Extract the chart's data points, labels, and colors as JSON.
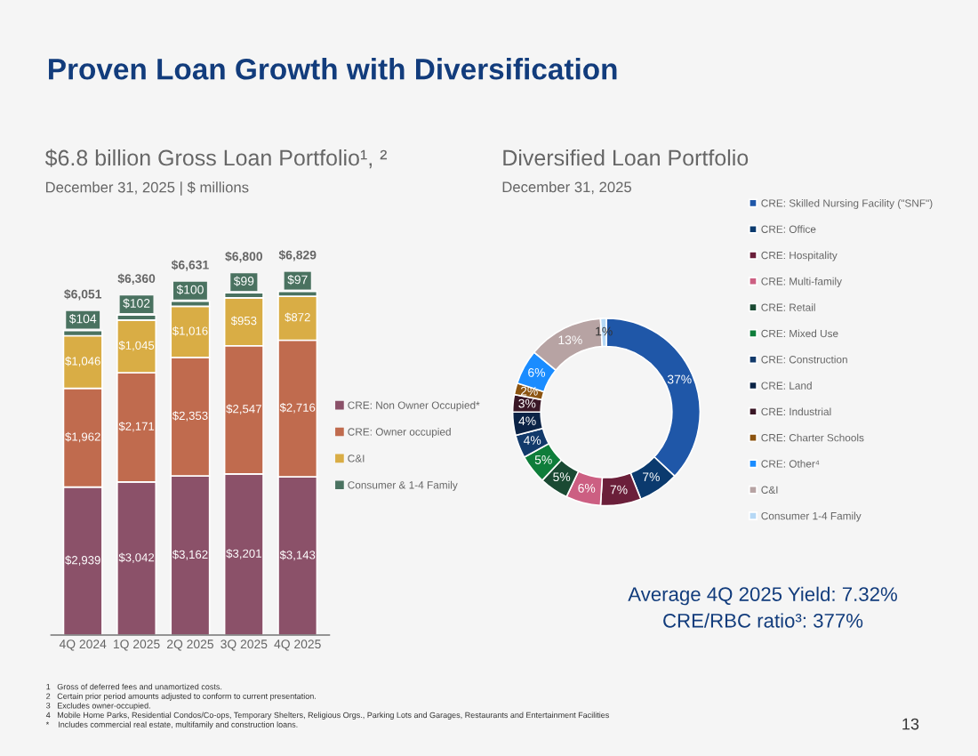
{
  "chart_data": [
    {
      "type": "bar",
      "title": "$6.8 billion Gross Loan Portfolio¹, ²",
      "subtitle": "December 31, 2025 | $ millions",
      "categories": [
        "4Q 2024",
        "1Q 2025",
        "2Q 2025",
        "3Q 2025",
        "4Q 2025"
      ],
      "stacked": true,
      "legend": "right",
      "series": [
        {
          "name": "CRE: Non Owner Occupied*",
          "color": "#8b5169",
          "values": [
            2939,
            3042,
            3162,
            3201,
            3143
          ],
          "value_labels": [
            "$2,939",
            "$3,042",
            "$3,162",
            "$3,201",
            "$3,143"
          ]
        },
        {
          "name": "CRE: Owner occupied",
          "color": "#c06b4e",
          "values": [
            1962,
            2171,
            2353,
            2547,
            2716
          ],
          "value_labels": [
            "$1,962",
            "$2,171",
            "$2,353",
            "$2,547",
            "$2,716"
          ]
        },
        {
          "name": "C&I",
          "color": "#d9ad45",
          "values": [
            1046,
            1045,
            1016,
            953,
            872
          ],
          "value_labels": [
            "$1,046",
            "$1,045",
            "$1,016",
            "$953",
            "$872"
          ]
        },
        {
          "name": "Consumer & 1-4 Family",
          "color": "#4a7260",
          "values": [
            104,
            102,
            100,
            99,
            97
          ],
          "value_labels": [
            "$104",
            "$102",
            "$100",
            "$99",
            "$97"
          ]
        }
      ],
      "totals": [
        "$6,051",
        "$6,360",
        "$6,631",
        "$6,800",
        "$6,829"
      ],
      "annotations": [
        "Proven Loan Growth with Diversification",
        "1   Gross of deferred fees and unamortized costs.",
        "2   Certain prior period amounts adjusted to conform to current presentation.",
        "3   Excludes owner-occupied.",
        "4   Mobile Home Parks, Residential Condos/Co-ops, Temporary Shelters, Religious Orgs., Parking Lots and Garages, Restaurants and Entertainment Facilities",
        "*    Includes commercial real estate, multifamily and construction loans."
      ]
    },
    {
      "type": "donut",
      "title": "Diversified Loan Portfolio",
      "subtitle": "December 31, 2025",
      "legend": "right",
      "categories": [
        "CRE: Skilled Nursing Facility (\"SNF\")",
        "CRE: Office",
        "CRE: Hospitality",
        "CRE: Multi-family",
        "CRE: Retail",
        "CRE: Mixed Use",
        "CRE: Construction",
        "CRE: Land",
        "CRE: Industrial",
        "CRE: Charter Schools",
        "CRE: Other⁴",
        "C&I",
        "Consumer 1-4 Family"
      ],
      "values": [
        37,
        7,
        7,
        6,
        5,
        5,
        4,
        4,
        3,
        2,
        6,
        13,
        1
      ],
      "value_labels": [
        "37%",
        "7%",
        "7%",
        "6%",
        "5%",
        "5%",
        "4%",
        "4%",
        "3%",
        "2%",
        "6%",
        "13%",
        "1%"
      ],
      "colors": [
        "#1f57a8",
        "#0b3a6e",
        "#6b1f3a",
        "#cc5f82",
        "#1a4a33",
        "#0e7d3a",
        "#123a6b",
        "#0b2346",
        "#3a1726",
        "#8c5410",
        "#1a8cff",
        "#b7a3a3",
        "#b5d8f5"
      ],
      "annotations": [
        "Average 4Q 2025 Yield: 7.32%",
        "CRE/RBC ratio³: 377%",
        "13"
      ]
    }
  ]
}
